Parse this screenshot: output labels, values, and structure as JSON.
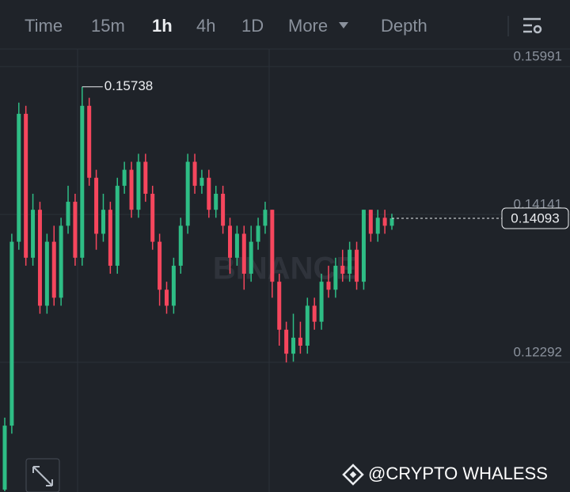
{
  "toolbar": {
    "tabs": [
      "Time",
      "15m",
      "1h",
      "4h",
      "1D",
      "More",
      "Depth"
    ]
  },
  "chart_data": {
    "type": "candlestick",
    "ylim": [
      0.1067,
      0.1621
    ],
    "yticks": [
      0.15991,
      0.14141,
      0.12292
    ],
    "grid": true,
    "up_color": "#2ebd85",
    "down_color": "#f6465d",
    "series": [
      {
        "open": [
          0.107,
          0.115,
          0.138,
          0.154,
          0.136,
          0.142,
          0.13,
          0.138,
          0.131,
          0.14,
          0.143,
          0.136,
          0.155,
          0.146,
          0.139,
          0.142,
          0.135,
          0.145,
          0.147,
          0.142,
          0.148,
          0.144,
          0.138,
          0.132,
          0.13,
          0.135,
          0.14,
          0.148,
          0.145,
          0.146,
          0.142,
          0.144,
          0.14,
          0.136,
          0.139,
          0.134,
          0.138,
          0.14,
          0.142,
          0.133,
          0.127,
          0.124,
          0.126,
          0.125,
          0.13,
          0.128,
          0.133,
          0.132,
          0.135,
          0.134,
          0.137,
          0.133,
          0.142,
          0.139,
          0.141,
          0.14
        ],
        "high": [
          0.116,
          0.139,
          0.1554,
          0.155,
          0.144,
          0.143,
          0.139,
          0.14,
          0.141,
          0.145,
          0.144,
          0.15738,
          0.156,
          0.147,
          0.144,
          0.143,
          0.146,
          0.148,
          0.148,
          0.149,
          0.149,
          0.145,
          0.139,
          0.133,
          0.136,
          0.141,
          0.149,
          0.149,
          0.147,
          0.147,
          0.145,
          0.145,
          0.141,
          0.14,
          0.14,
          0.14,
          0.141,
          0.143,
          0.142,
          0.134,
          0.128,
          0.129,
          0.128,
          0.131,
          0.131,
          0.134,
          0.135,
          0.136,
          0.137,
          0.138,
          0.138,
          0.142,
          0.142,
          0.142,
          0.142,
          0.1415
        ],
        "low": [
          0.1068,
          0.114,
          0.137,
          0.135,
          0.135,
          0.129,
          0.129,
          0.13,
          0.13,
          0.139,
          0.135,
          0.135,
          0.145,
          0.137,
          0.138,
          0.134,
          0.134,
          0.144,
          0.141,
          0.141,
          0.143,
          0.137,
          0.13,
          0.129,
          0.129,
          0.134,
          0.139,
          0.144,
          0.144,
          0.141,
          0.141,
          0.139,
          0.134,
          0.135,
          0.132,
          0.133,
          0.137,
          0.139,
          0.131,
          0.125,
          0.1229,
          0.123,
          0.124,
          0.124,
          0.127,
          0.127,
          0.131,
          0.131,
          0.133,
          0.133,
          0.132,
          0.132,
          0.138,
          0.138,
          0.139,
          0.1395
        ],
        "close": [
          0.115,
          0.138,
          0.154,
          0.136,
          0.142,
          0.13,
          0.138,
          0.131,
          0.14,
          0.143,
          0.136,
          0.155,
          0.146,
          0.139,
          0.142,
          0.135,
          0.145,
          0.147,
          0.142,
          0.148,
          0.144,
          0.138,
          0.132,
          0.13,
          0.135,
          0.14,
          0.148,
          0.145,
          0.146,
          0.142,
          0.144,
          0.14,
          0.136,
          0.139,
          0.134,
          0.138,
          0.14,
          0.142,
          0.133,
          0.127,
          0.124,
          0.126,
          0.125,
          0.13,
          0.128,
          0.133,
          0.132,
          0.135,
          0.134,
          0.137,
          0.133,
          0.142,
          0.139,
          0.141,
          0.14,
          0.14093
        ]
      }
    ],
    "high_label": 0.15738,
    "last_price": 0.14093,
    "watermark": "BINANCE"
  },
  "footer": {
    "credit": "@CRYPTO WHALESS"
  }
}
